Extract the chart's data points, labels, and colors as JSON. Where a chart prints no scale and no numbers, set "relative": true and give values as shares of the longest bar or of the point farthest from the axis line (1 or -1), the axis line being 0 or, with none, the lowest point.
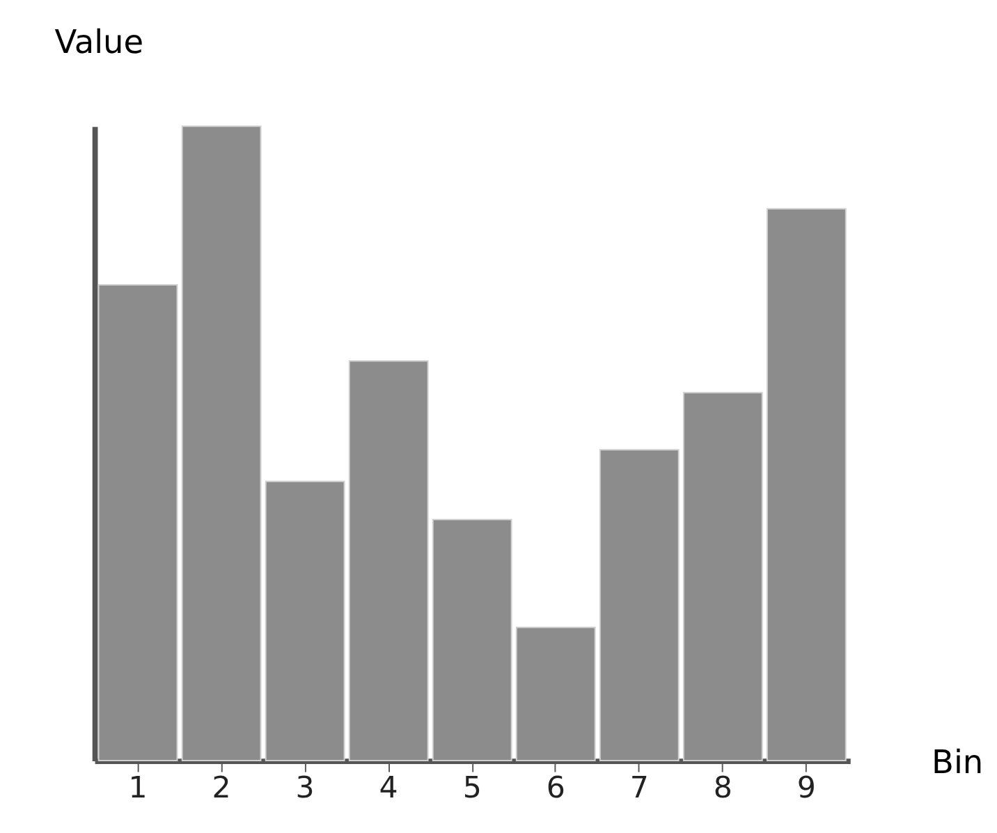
{
  "chart_data": {
    "type": "bar",
    "xlabel": "Bin",
    "ylabel": "Value",
    "categories": [
      "1",
      "2",
      "3",
      "4",
      "5",
      "6",
      "7",
      "8",
      "9"
    ],
    "values": [
      0.75,
      1,
      0.44,
      0.63,
      0.38,
      0.21,
      0.49,
      0.58,
      0.87
    ],
    "color": "#8c8c8c",
    "relative": true,
    "tick_labels": "x",
    "grid": false
  }
}
